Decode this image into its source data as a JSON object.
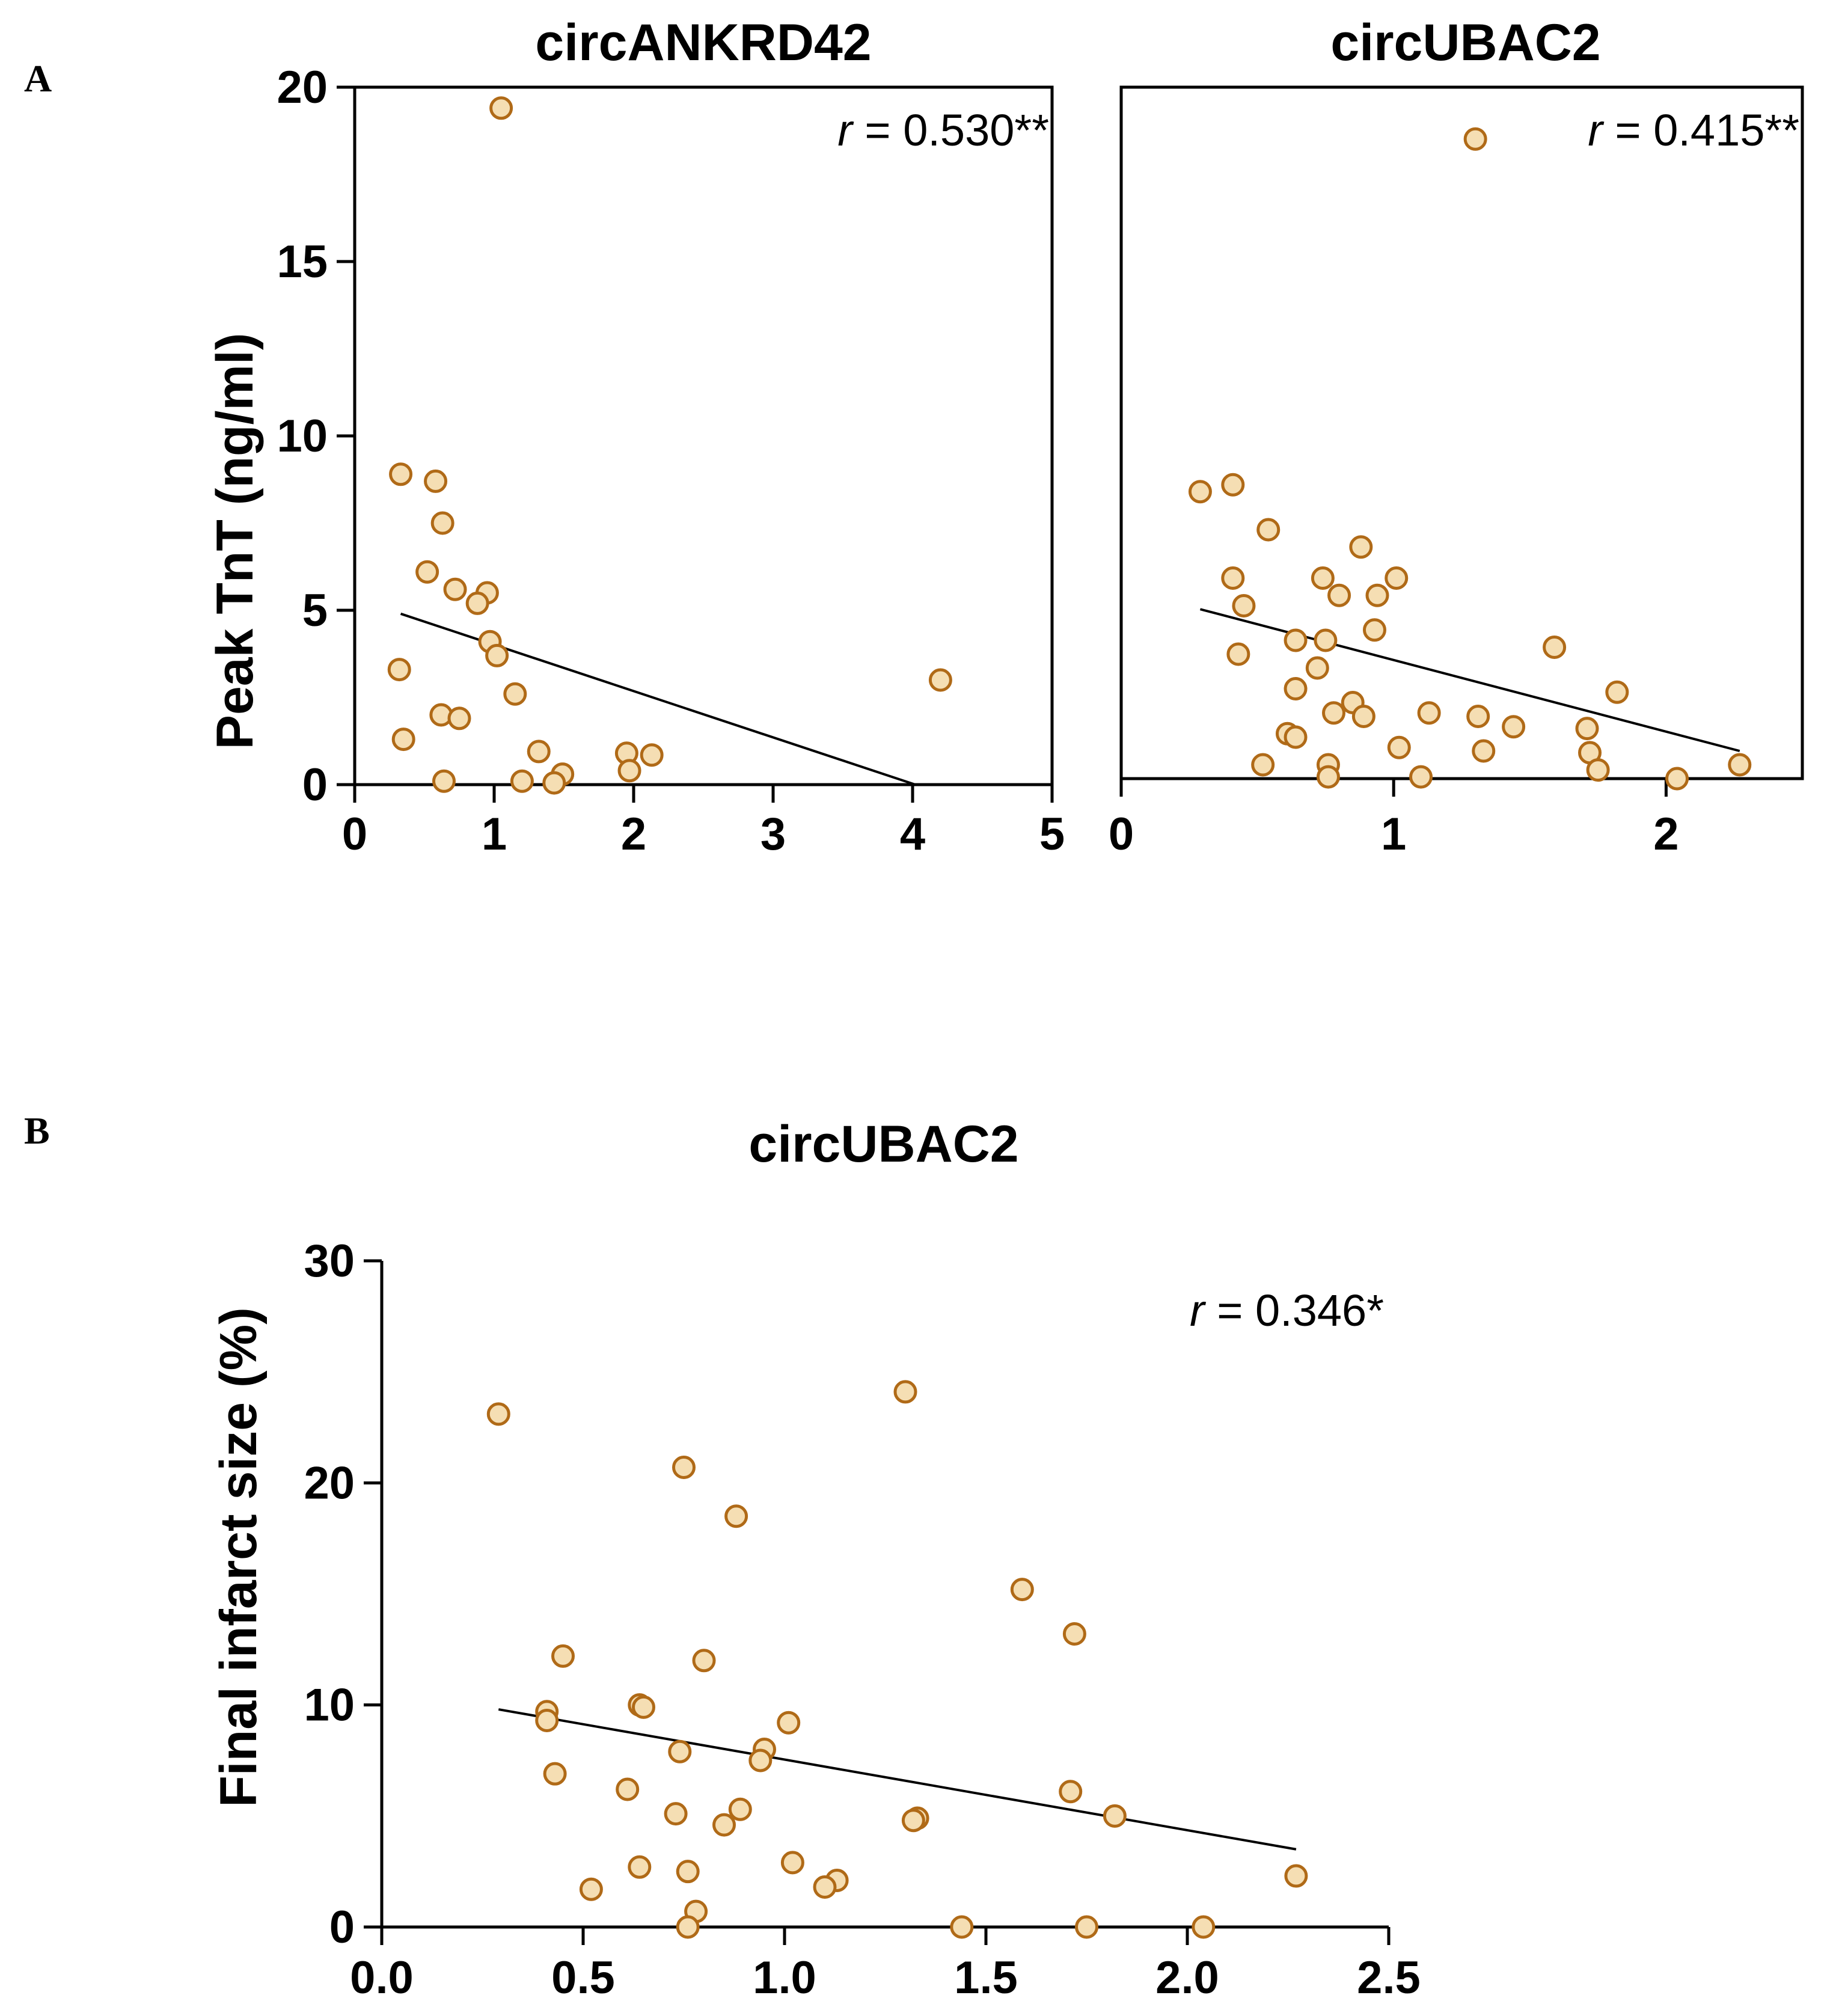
{
  "figure": {
    "panel_labels": [
      "A",
      "B"
    ]
  },
  "chart_data": [
    {
      "type": "scatter",
      "panel": "A",
      "title": "circANKRD42",
      "xlabel": "",
      "ylabel": "Peak TnT (ng/ml)",
      "xlim": [
        0,
        5
      ],
      "ylim": [
        0,
        20
      ],
      "xticks": [
        "0",
        "1",
        "2",
        "3",
        "4",
        "5"
      ],
      "yticks": [
        "0",
        "5",
        "10",
        "15",
        "20"
      ],
      "annotation": {
        "r_symbol": "r",
        "text": " = 0.530**"
      },
      "trendline": {
        "x": [
          0.33,
          4.02
        ],
        "y": [
          4.9,
          0.0
        ]
      },
      "points": [
        {
          "x": 1.05,
          "y": 19.4
        },
        {
          "x": 0.33,
          "y": 8.9
        },
        {
          "x": 0.58,
          "y": 8.7
        },
        {
          "x": 0.63,
          "y": 7.5
        },
        {
          "x": 0.52,
          "y": 6.1
        },
        {
          "x": 0.72,
          "y": 5.6
        },
        {
          "x": 0.95,
          "y": 5.5
        },
        {
          "x": 0.88,
          "y": 5.2
        },
        {
          "x": 0.97,
          "y": 4.1
        },
        {
          "x": 1.02,
          "y": 3.7
        },
        {
          "x": 0.32,
          "y": 3.3
        },
        {
          "x": 1.15,
          "y": 2.6
        },
        {
          "x": 0.62,
          "y": 2.0
        },
        {
          "x": 0.75,
          "y": 1.9
        },
        {
          "x": 0.35,
          "y": 1.3
        },
        {
          "x": 1.32,
          "y": 0.95
        },
        {
          "x": 1.95,
          "y": 0.9
        },
        {
          "x": 2.13,
          "y": 0.85
        },
        {
          "x": 1.97,
          "y": 0.4
        },
        {
          "x": 1.49,
          "y": 0.3
        },
        {
          "x": 0.64,
          "y": 0.1
        },
        {
          "x": 1.2,
          "y": 0.1
        },
        {
          "x": 1.43,
          "y": 0.05
        },
        {
          "x": 4.2,
          "y": 3.0
        }
      ]
    },
    {
      "type": "scatter",
      "panel": "A",
      "title": "circUBAC2",
      "xlabel": "",
      "ylabel": "",
      "xlim": [
        0,
        2.5
      ],
      "ylim": [
        0,
        20
      ],
      "xticks": [
        "0",
        "1",
        "2"
      ],
      "yticks": [],
      "annotation": {
        "r_symbol": "r",
        "text": " = 0.415**"
      },
      "trendline": {
        "x": [
          0.29,
          2.27
        ],
        "y": [
          4.9,
          0.8
        ]
      },
      "points": [
        {
          "x": 1.3,
          "y": 18.5
        },
        {
          "x": 0.29,
          "y": 8.3
        },
        {
          "x": 0.41,
          "y": 8.5
        },
        {
          "x": 0.54,
          "y": 7.2
        },
        {
          "x": 0.88,
          "y": 6.7
        },
        {
          "x": 0.41,
          "y": 5.8
        },
        {
          "x": 0.74,
          "y": 5.8
        },
        {
          "x": 1.01,
          "y": 5.8
        },
        {
          "x": 0.8,
          "y": 5.3
        },
        {
          "x": 0.94,
          "y": 5.3
        },
        {
          "x": 0.45,
          "y": 5.0
        },
        {
          "x": 0.93,
          "y": 4.3
        },
        {
          "x": 0.64,
          "y": 4.0
        },
        {
          "x": 0.75,
          "y": 4.0
        },
        {
          "x": 1.59,
          "y": 3.8
        },
        {
          "x": 0.43,
          "y": 3.6
        },
        {
          "x": 0.72,
          "y": 3.2
        },
        {
          "x": 0.64,
          "y": 2.6
        },
        {
          "x": 1.82,
          "y": 2.5
        },
        {
          "x": 0.85,
          "y": 2.2
        },
        {
          "x": 0.78,
          "y": 1.9
        },
        {
          "x": 0.89,
          "y": 1.8
        },
        {
          "x": 1.13,
          "y": 1.9
        },
        {
          "x": 1.31,
          "y": 1.8
        },
        {
          "x": 1.44,
          "y": 1.5
        },
        {
          "x": 1.71,
          "y": 1.45
        },
        {
          "x": 0.61,
          "y": 1.3
        },
        {
          "x": 0.64,
          "y": 1.2
        },
        {
          "x": 1.02,
          "y": 0.9
        },
        {
          "x": 1.33,
          "y": 0.8
        },
        {
          "x": 1.72,
          "y": 0.75
        },
        {
          "x": 0.52,
          "y": 0.4
        },
        {
          "x": 0.76,
          "y": 0.4
        },
        {
          "x": 1.75,
          "y": 0.25
        },
        {
          "x": 2.27,
          "y": 0.4
        },
        {
          "x": 0.76,
          "y": 0.05
        },
        {
          "x": 1.1,
          "y": 0.05
        },
        {
          "x": 2.04,
          "y": 0.0
        }
      ]
    },
    {
      "type": "scatter",
      "panel": "B",
      "title": "circUBAC2",
      "xlabel": "",
      "ylabel": "Final infarct size (%)",
      "xlim": [
        0,
        2.5
      ],
      "ylim": [
        0,
        30
      ],
      "xticks": [
        "0.0",
        "0.5",
        "1.0",
        "1.5",
        "2.0",
        "2.5"
      ],
      "yticks": [
        "0",
        "10",
        "20",
        "30"
      ],
      "annotation": {
        "r_symbol": "r",
        "text": " = 0.346*"
      },
      "trendline": {
        "x": [
          0.29,
          2.27
        ],
        "y": [
          9.8,
          3.5
        ]
      },
      "points": [
        {
          "x": 1.3,
          "y": 24.1
        },
        {
          "x": 0.29,
          "y": 23.1
        },
        {
          "x": 0.75,
          "y": 20.7
        },
        {
          "x": 0.88,
          "y": 18.5
        },
        {
          "x": 1.59,
          "y": 15.2
        },
        {
          "x": 1.72,
          "y": 13.2
        },
        {
          "x": 0.45,
          "y": 12.2
        },
        {
          "x": 0.8,
          "y": 12.0
        },
        {
          "x": 0.64,
          "y": 10.0
        },
        {
          "x": 0.65,
          "y": 9.9
        },
        {
          "x": 0.41,
          "y": 9.7
        },
        {
          "x": 0.41,
          "y": 9.3
        },
        {
          "x": 1.01,
          "y": 9.2
        },
        {
          "x": 0.95,
          "y": 8.0
        },
        {
          "x": 0.74,
          "y": 7.9
        },
        {
          "x": 0.94,
          "y": 7.5
        },
        {
          "x": 0.43,
          "y": 6.9
        },
        {
          "x": 0.61,
          "y": 6.2
        },
        {
          "x": 1.71,
          "y": 6.1
        },
        {
          "x": 0.89,
          "y": 5.3
        },
        {
          "x": 0.73,
          "y": 5.1
        },
        {
          "x": 1.82,
          "y": 5.0
        },
        {
          "x": 1.33,
          "y": 4.9
        },
        {
          "x": 1.32,
          "y": 4.8
        },
        {
          "x": 0.85,
          "y": 4.6
        },
        {
          "x": 1.02,
          "y": 2.9
        },
        {
          "x": 0.64,
          "y": 2.7
        },
        {
          "x": 0.76,
          "y": 2.5
        },
        {
          "x": 2.27,
          "y": 2.3
        },
        {
          "x": 1.13,
          "y": 2.1
        },
        {
          "x": 1.1,
          "y": 1.8
        },
        {
          "x": 0.52,
          "y": 1.7
        },
        {
          "x": 0.78,
          "y": 0.7
        },
        {
          "x": 0.76,
          "y": 0.0
        },
        {
          "x": 1.44,
          "y": 0.0
        },
        {
          "x": 1.75,
          "y": 0.0
        },
        {
          "x": 2.04,
          "y": 0.0
        }
      ]
    }
  ]
}
